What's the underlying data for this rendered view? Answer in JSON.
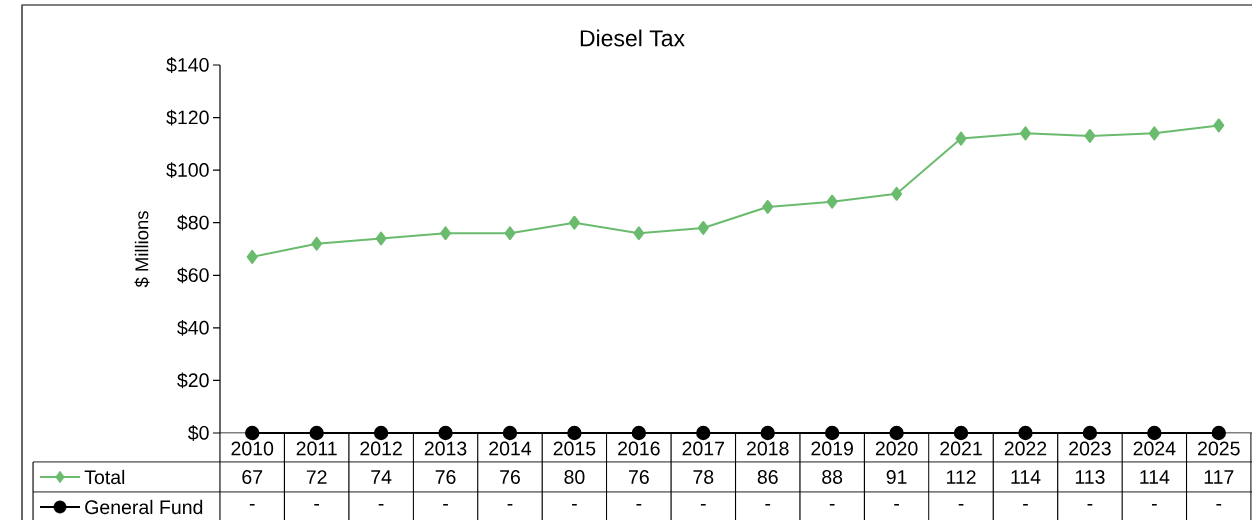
{
  "chart_data": {
    "type": "line",
    "title": "Diesel Tax",
    "ylabel": "$ Millions",
    "categories": [
      "2010",
      "2011",
      "2012",
      "2013",
      "2014",
      "2015",
      "2016",
      "2017",
      "2018",
      "2019",
      "2020",
      "2021",
      "2022",
      "2023",
      "2024",
      "2025"
    ],
    "series": [
      {
        "name": "Total",
        "color": "#6abb6e",
        "marker": "diamond",
        "values": [
          67,
          72,
          74,
          76,
          76,
          80,
          76,
          78,
          86,
          88,
          91,
          112,
          114,
          113,
          114,
          117
        ],
        "value_labels": [
          "67",
          "72",
          "74",
          "76",
          "76",
          "80",
          "76",
          "78",
          "86",
          "88",
          "91",
          "112",
          "114",
          "113",
          "114",
          "117"
        ]
      },
      {
        "name": "General Fund",
        "color": "#000000",
        "marker": "circle",
        "values": [
          0,
          0,
          0,
          0,
          0,
          0,
          0,
          0,
          0,
          0,
          0,
          0,
          0,
          0,
          0,
          0
        ],
        "value_labels": [
          "-",
          "-",
          "-",
          "-",
          "-",
          "-",
          "-",
          "-",
          "-",
          "-",
          "-",
          "-",
          "-",
          "-",
          "-",
          "-"
        ]
      }
    ],
    "ylim": [
      0,
      140
    ],
    "yticks": [
      {
        "value": 0,
        "label": "$0"
      },
      {
        "value": 20,
        "label": "$20"
      },
      {
        "value": 40,
        "label": "$40"
      },
      {
        "value": 60,
        "label": "$60"
      },
      {
        "value": 80,
        "label": "$80"
      },
      {
        "value": 100,
        "label": "$100"
      },
      {
        "value": 120,
        "label": "$120"
      },
      {
        "value": 140,
        "label": "$140"
      }
    ],
    "legend": "bottom left",
    "line_style": "solid"
  }
}
